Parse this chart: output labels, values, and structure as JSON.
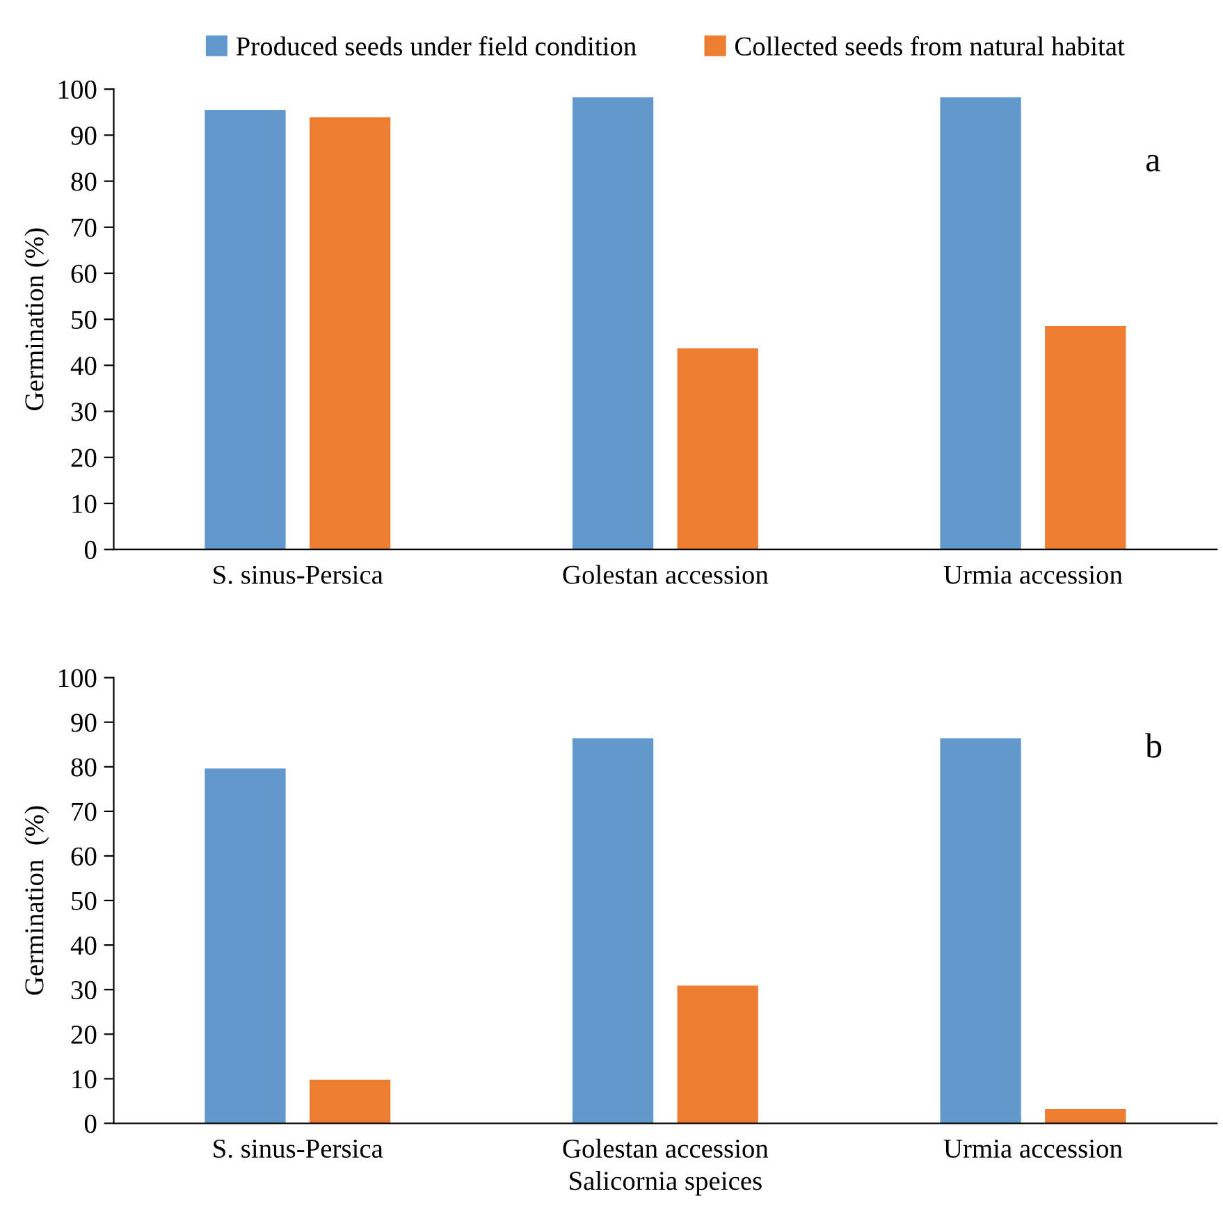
{
  "chart_data": [
    {
      "type": "bar",
      "ylabel": "Germination (%)",
      "categories": [
        "S. sinus-Persica",
        "Golestan accession",
        "Urmia accession"
      ],
      "series": [
        {
          "name": "Produced seeds under field condition",
          "color": "#6199cc",
          "values": [
            95.5,
            98.2,
            98.2
          ]
        },
        {
          "name": "Collected seeds from natural habitat",
          "color": "#ed7d31",
          "values": [
            93.9,
            43.7,
            48.5
          ]
        }
      ],
      "ylim": [
        0,
        100
      ],
      "yticks": [
        0,
        10,
        20,
        30,
        40,
        50,
        60,
        70,
        80,
        90,
        100
      ],
      "legend": "top",
      "grid": false,
      "annotations": [
        "a"
      ]
    },
    {
      "type": "bar",
      "xlabel": "Salicornia speices",
      "ylabel": "Germination  (%)",
      "categories": [
        "S. sinus-Persica",
        "Golestan accession",
        "Urmia accession"
      ],
      "series": [
        {
          "color": "#6199cc",
          "values": [
            79.6,
            86.4,
            86.4
          ]
        },
        {
          "color": "#ed7d31",
          "values": [
            9.8,
            30.9,
            3.2
          ]
        }
      ],
      "ylim": [
        0,
        100
      ],
      "yticks": [
        0,
        10,
        20,
        30,
        40,
        50,
        60,
        70,
        80,
        90,
        100
      ],
      "grid": false,
      "annotations": [
        "b"
      ]
    }
  ]
}
